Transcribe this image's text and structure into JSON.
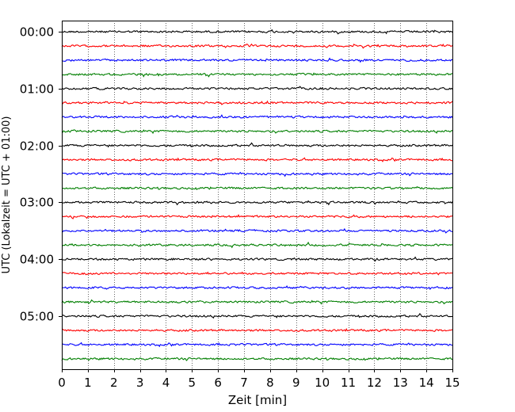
{
  "chart_data": {
    "type": "line",
    "title": "",
    "xlabel": "Zeit  [min]",
    "ylabel": "UTC (Lokalzeit = UTC + 01:00)",
    "xlim": [
      0,
      15
    ],
    "x_ticks": [
      0,
      1,
      2,
      3,
      4,
      5,
      6,
      7,
      8,
      9,
      10,
      11,
      12,
      13,
      14,
      15
    ],
    "y_tick_labels": [
      "00:00",
      "01:00",
      "02:00",
      "03:00",
      "04:00",
      "05:00"
    ],
    "y_tick_rows": [
      0,
      4,
      8,
      12,
      16,
      20
    ],
    "grid": "vertical dotted",
    "rows_per_hour": 4,
    "row_minutes": 15,
    "row_count": 24,
    "row_colors": [
      "#000000",
      "#ff0000",
      "#0000ff",
      "#007f00"
    ],
    "trace_amplitude_note": "seismogram-like noise traces, one per 15-minute row"
  }
}
